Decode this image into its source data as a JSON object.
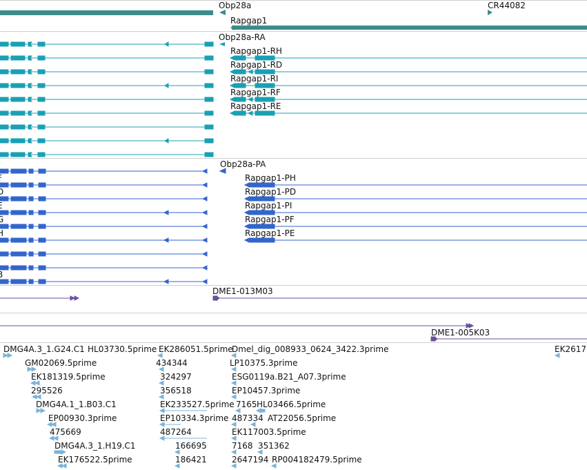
{
  "colors": {
    "gene_teal": "#3c8c8a",
    "transcript_teal": "#1aa0b4",
    "protein_blue": "#3366cc",
    "clone_purple": "#6a4fa0",
    "est_lightblue": "#78b4dc",
    "separator": "#cfcfcf"
  },
  "tracks": {
    "genes": {
      "labels": [
        "Obp28a",
        "CR44082",
        "Rapgap1"
      ]
    },
    "transcripts": {
      "labels": [
        "Obp28a-RA",
        "Rapgap1-RH",
        "Rapgap1-RD",
        "Rapgap1-RI",
        "Rapgap1-RF",
        "Rapgap1-RE"
      ]
    },
    "proteins": {
      "labels": [
        "Obp28a-PA",
        "Rapgap1-PH",
        "Rapgap1-PD",
        "Rapgap1-PI",
        "Rapgap1-PF",
        "Rapgap1-PE"
      ],
      "left_partial_labels": [
        "F",
        "D",
        "E",
        "G",
        "H",
        "B"
      ]
    },
    "clones": {
      "labels": [
        "DME1-013M03",
        "DME1-005K03"
      ]
    },
    "ests": {
      "labels": [
        "DMG4A.3_1.G24.C1",
        "HL03730.5prime",
        "EK286051.5prime",
        "Dmel_dig_008933_0624_3422.3prime",
        "EK2617",
        "GM02069.5prime",
        "434344",
        "LP10375.3prime",
        "EK181319.5prime",
        "324297",
        "ESG0119a.B21_A07.3prime",
        "295526",
        "356518",
        "EP10457.3prime",
        "DMG4A.1_1.B03.C1",
        "EK233527.5prime",
        "7165",
        "HL03466.5prime",
        "EP00930.3prime",
        "EP10334.3prime",
        "487334",
        "AT22056.5prime",
        "475669",
        "487264",
        "EK117003.5prime",
        "DMG4A.3_1.H19.C1",
        "166695",
        "7168",
        "351362",
        "EK176522.5prime",
        "186421",
        "2647194",
        "RP004182479.5prime"
      ]
    }
  }
}
